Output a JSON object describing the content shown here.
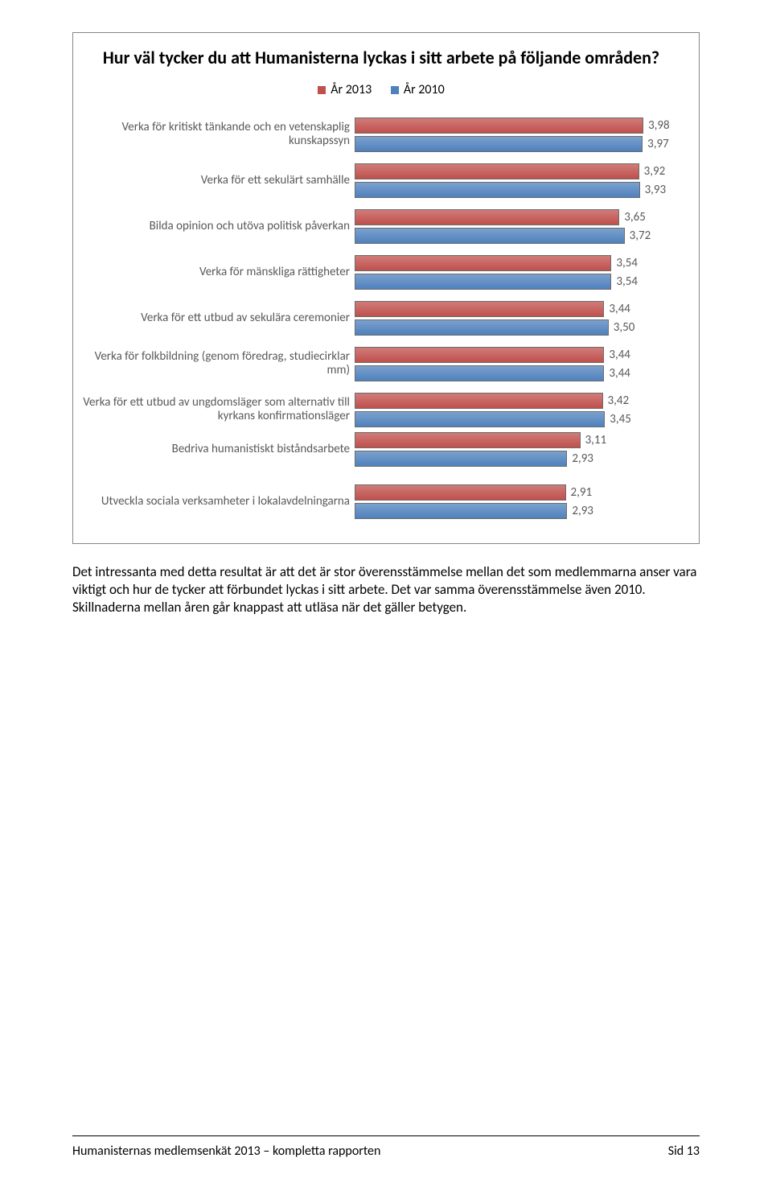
{
  "chart": {
    "type": "horizontal-grouped-bar",
    "title": "Hur väl tycker du att Humanisterna lyckas i sitt arbete på följande områden?",
    "title_fontsize": 22,
    "legend": {
      "series": [
        {
          "label": "År 2013",
          "color": "#c0504d"
        },
        {
          "label": "År 2010",
          "color": "#4f81bd"
        }
      ]
    },
    "x_max": 4.5,
    "bar_border_color": "#6b6b6b",
    "label_color": "#595959",
    "value_color": "#595959",
    "value_fontsize": 15,
    "label_fontsize": 15,
    "items": [
      {
        "label": "Verka för kritiskt tänkande och en vetenskaplig kunskapssyn",
        "v2013": 3.98,
        "v2010": 3.97,
        "d2013": "3,98",
        "d2010": "3,97"
      },
      {
        "label": "Verka för ett sekulärt samhälle",
        "v2013": 3.92,
        "v2010": 3.93,
        "d2013": "3,92",
        "d2010": "3,93"
      },
      {
        "label": "Bilda opinion och utöva politisk påverkan",
        "v2013": 3.65,
        "v2010": 3.72,
        "d2013": "3,65",
        "d2010": "3,72"
      },
      {
        "label": "Verka för mänskliga rättigheter",
        "v2013": 3.54,
        "v2010": 3.54,
        "d2013": "3,54",
        "d2010": "3,54"
      },
      {
        "label": "Verka för ett utbud av sekulära ceremonier",
        "v2013": 3.44,
        "v2010": 3.5,
        "d2013": "3,44",
        "d2010": "3,50"
      },
      {
        "label": "Verka för folkbildning (genom föredrag, studiecirklar mm)",
        "v2013": 3.44,
        "v2010": 3.44,
        "d2013": "3,44",
        "d2010": "3,44"
      },
      {
        "label": "Verka för ett utbud av ungdomsläger som alternativ till kyrkans konfirmationsläger",
        "v2013": 3.42,
        "v2010": 3.45,
        "d2013": "3,42",
        "d2010": "3,45"
      },
      {
        "label": "Bedriva humanistiskt biståndsarbete",
        "v2013": 3.11,
        "v2010": 2.93,
        "d2013": "3,11",
        "d2010": "2,93"
      },
      {
        "label": "Utveckla sociala verksamheter i lokalavdelningarna",
        "v2013": 2.91,
        "v2010": 2.93,
        "d2013": "2,91",
        "d2010": "2,93"
      }
    ]
  },
  "body_paragraph": "Det intressanta med detta resultat är att det är stor överensstämmelse mellan det som medlemmarna anser vara viktigt och hur de tycker att förbundet lyckas i sitt arbete. Det var samma överensstämmelse även 2010. Skillnaderna mellan åren går knappast att utläsa när det gäller betygen.",
  "footer": {
    "left": "Humanisternas medlemsenkät 2013 – kompletta rapporten",
    "right": "Sid 13"
  }
}
